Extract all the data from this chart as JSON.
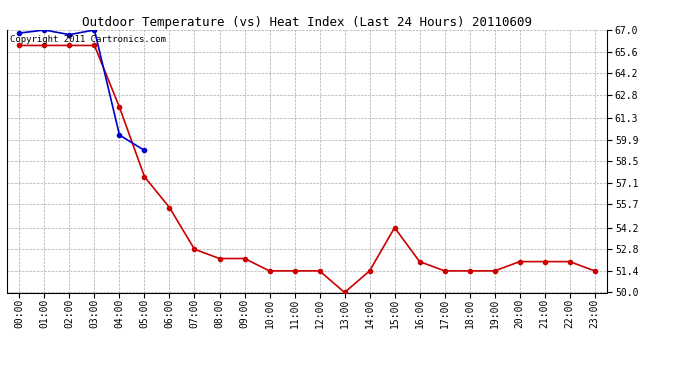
{
  "title": "Outdoor Temperature (vs) Heat Index (Last 24 Hours) 20110609",
  "copyright_text": "Copyright 2011 Cartronics.com",
  "x_labels": [
    "00:00",
    "01:00",
    "02:00",
    "03:00",
    "04:00",
    "05:00",
    "06:00",
    "07:00",
    "08:00",
    "09:00",
    "10:00",
    "11:00",
    "12:00",
    "13:00",
    "14:00",
    "15:00",
    "16:00",
    "17:00",
    "18:00",
    "19:00",
    "20:00",
    "21:00",
    "22:00",
    "23:00"
  ],
  "red_data": [
    66.0,
    66.0,
    66.0,
    66.0,
    62.0,
    57.5,
    55.5,
    52.8,
    52.2,
    52.2,
    51.4,
    51.4,
    51.4,
    50.0,
    51.4,
    54.2,
    52.0,
    51.4,
    51.4,
    51.4,
    52.0,
    52.0,
    52.0,
    51.4
  ],
  "blue_data": [
    66.8,
    67.0,
    66.7,
    67.0,
    60.2,
    59.2,
    null,
    null,
    null,
    null,
    null,
    null,
    null,
    null,
    null,
    null,
    null,
    null,
    null,
    null,
    null,
    null,
    null,
    null
  ],
  "ylim_min": 50.0,
  "ylim_max": 67.0,
  "y_ticks": [
    50.0,
    51.4,
    52.8,
    54.2,
    55.7,
    57.1,
    58.5,
    59.9,
    61.3,
    62.8,
    64.2,
    65.6,
    67.0
  ],
  "bg_color": "#ffffff",
  "grid_color": "#aaaaaa",
  "red_color": "#cc0000",
  "blue_color": "#0000cc",
  "title_fontsize": 9,
  "copyright_fontsize": 6.5,
  "tick_fontsize": 7,
  "marker_size": 3,
  "linewidth": 1.2
}
